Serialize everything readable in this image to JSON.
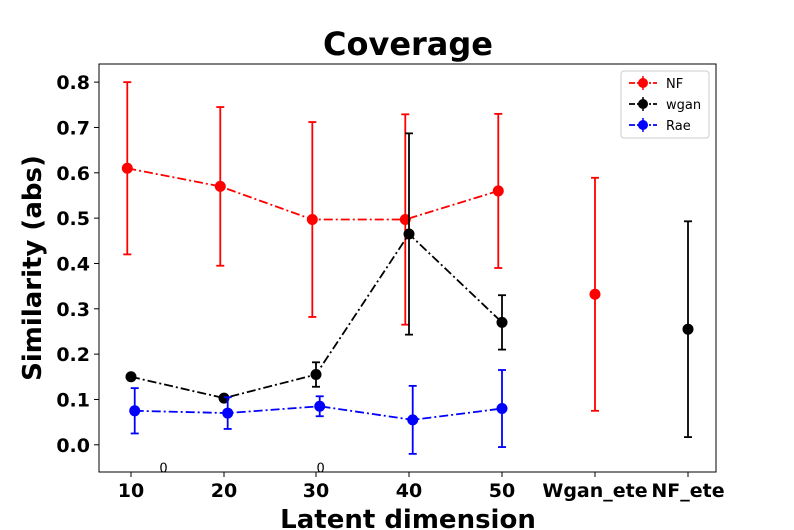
{
  "chart_data": {
    "type": "line",
    "title": "Coverage",
    "xlabel": "Latent dimension",
    "ylabel": "Similarity (abs)",
    "categories": [
      "10",
      "20",
      "30",
      "40",
      "50",
      "Wgan_ete",
      "NF_ete"
    ],
    "ylim": [
      -0.06,
      0.84
    ],
    "yticks": [
      "0.0",
      "0.1",
      "0.2",
      "0.3",
      "0.4",
      "0.5",
      "0.6",
      "0.7",
      "0.8"
    ],
    "grid": false,
    "legend_position": "top-right",
    "annotations": [
      {
        "text": "0",
        "x": 13.5,
        "y": -0.05
      },
      {
        "text": "0",
        "x": 30.5,
        "y": -0.05
      }
    ],
    "series": [
      {
        "name": "NF",
        "color": "#ff0000",
        "x": [
          10,
          20,
          30,
          40,
          50
        ],
        "values": [
          0.61,
          0.57,
          0.497,
          0.497,
          0.56
        ],
        "err": [
          0.19,
          0.175,
          0.215,
          0.232,
          0.17
        ],
        "offset": -0.4
      },
      {
        "name": "wgan",
        "color": "#000000",
        "x": [
          10,
          20,
          30,
          40,
          50
        ],
        "values": [
          0.15,
          0.103,
          0.155,
          0.465,
          0.27
        ],
        "err": [
          0.0,
          0.005,
          0.027,
          0.222,
          0.06
        ],
        "offset": 0.0
      },
      {
        "name": "Rae",
        "color": "#0000ff",
        "x": [
          10,
          20,
          30,
          40,
          50
        ],
        "values": [
          0.075,
          0.07,
          0.085,
          0.055,
          0.08
        ],
        "err": [
          0.05,
          0.035,
          0.022,
          0.075,
          0.085
        ],
        "offset": 0.4
      }
    ],
    "standalone_points": [
      {
        "category": "Wgan_ete",
        "color": "#ff0000",
        "value": 0.332,
        "err": 0.257
      },
      {
        "category": "NF_ete",
        "color": "#000000",
        "value": 0.255,
        "err": 0.238
      }
    ]
  }
}
